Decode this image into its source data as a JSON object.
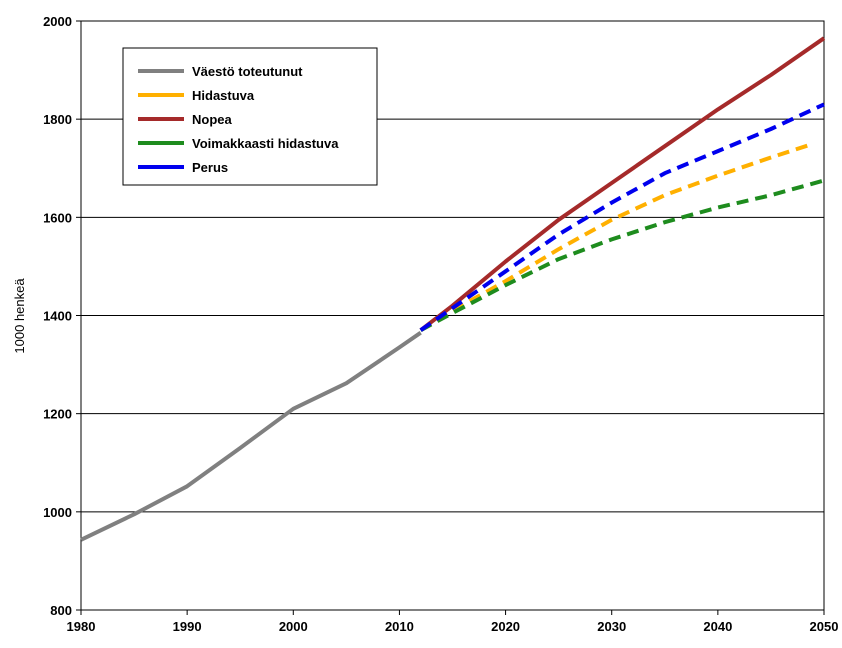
{
  "chart_data": {
    "type": "line",
    "title": "",
    "xlabel": "",
    "ylabel": "1000 henkeä",
    "xlim": [
      1980,
      2050
    ],
    "ylim": [
      800,
      2000
    ],
    "x_ticks": [
      1980,
      1990,
      2000,
      2010,
      2020,
      2030,
      2040,
      2050
    ],
    "y_ticks": [
      800,
      1000,
      1200,
      1400,
      1600,
      1800,
      2000
    ],
    "grid": "horizontal",
    "legend_position": "top-left",
    "series": [
      {
        "name": "Väestö toteutunut",
        "color": "#808080",
        "style": "solid",
        "x": [
          1980,
          1985,
          1990,
          1995,
          2000,
          2005,
          2010,
          2012
        ],
        "y": [
          943,
          995,
          1052,
          1130,
          1210,
          1262,
          1335,
          1365
        ]
      },
      {
        "name": "Hidastuva",
        "color": "#FFB000",
        "style": "dash",
        "x": [
          2012,
          2015,
          2020,
          2025,
          2030,
          2035,
          2040,
          2045,
          2049
        ],
        "y": [
          1370,
          1410,
          1470,
          1535,
          1595,
          1645,
          1685,
          1722,
          1750
        ]
      },
      {
        "name": "Nopea",
        "color": "#A52A2A",
        "style": "solid",
        "x": [
          2012,
          2015,
          2020,
          2025,
          2030,
          2035,
          2040,
          2045,
          2050
        ],
        "y": [
          1370,
          1420,
          1510,
          1595,
          1670,
          1745,
          1820,
          1890,
          1965
        ]
      },
      {
        "name": "Voimakkaasti hidastuva",
        "color": "#1E8C1E",
        "style": "dash",
        "x": [
          2012,
          2015,
          2020,
          2025,
          2030,
          2035,
          2040,
          2045,
          2050
        ],
        "y": [
          1370,
          1405,
          1462,
          1515,
          1555,
          1590,
          1620,
          1645,
          1675
        ]
      },
      {
        "name": "Perus",
        "color": "#0000EE",
        "style": "dash",
        "x": [
          2012,
          2015,
          2020,
          2025,
          2030,
          2035,
          2040,
          2045,
          2050
        ],
        "y": [
          1370,
          1415,
          1490,
          1565,
          1630,
          1690,
          1735,
          1780,
          1830
        ]
      }
    ]
  }
}
